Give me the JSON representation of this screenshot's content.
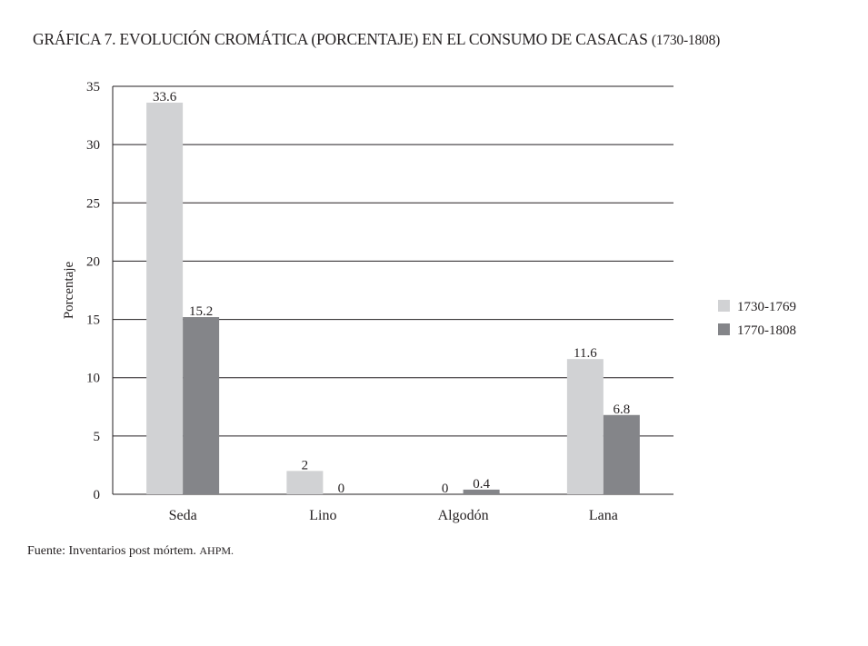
{
  "title": "GRÁFICA 7. EVOLUCIÓN CROMÁTICA (PORCENTAJE) EN EL CONSUMO DE CASACAS",
  "title_years": "(1730-1808)",
  "source_prefix": "Fuente: Inventarios post mórtem.",
  "source_abbr": "AHPM.",
  "chart_data": {
    "type": "bar",
    "title": "GRÁFICA 7. EVOLUCIÓN CROMÁTICA (PORCENTAJE) EN EL CONSUMO DE CASACAS (1730-1808)",
    "xlabel": "",
    "ylabel": "Porcentaje",
    "ylim": [
      0,
      35
    ],
    "yticks": [
      0,
      5,
      10,
      15,
      20,
      25,
      30,
      35
    ],
    "grid": true,
    "legend_position": "right",
    "categories": [
      "Seda",
      "Lino",
      "Algodón",
      "Lana"
    ],
    "series": [
      {
        "name": "1730-1769",
        "color": "#d1d2d4",
        "values": [
          33.6,
          2,
          0,
          11.6
        ]
      },
      {
        "name": "1770-1808",
        "color": "#848589",
        "values": [
          15.2,
          0,
          0.4,
          6.8
        ]
      }
    ]
  }
}
